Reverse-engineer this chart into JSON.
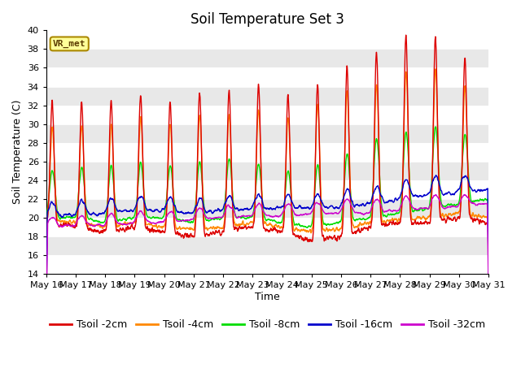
{
  "title": "Soil Temperature Set 3",
  "xlabel": "Time",
  "ylabel": "Soil Temperature (C)",
  "ylim": [
    14,
    40
  ],
  "yticks": [
    14,
    16,
    18,
    20,
    22,
    24,
    26,
    28,
    30,
    32,
    34,
    36,
    38,
    40
  ],
  "colors": {
    "Tsoil -2cm": "#dd0000",
    "Tsoil -4cm": "#ff8800",
    "Tsoil -8cm": "#00dd00",
    "Tsoil -16cm": "#0000cc",
    "Tsoil -32cm": "#cc00cc"
  },
  "background_fig": "#ffffff",
  "band_colors": [
    "#ffffff",
    "#e8e8e8"
  ],
  "vr_met_box_color": "#ffff99",
  "vr_met_border_color": "#aa8800",
  "title_fontsize": 12,
  "axis_label_fontsize": 9,
  "tick_fontsize": 8,
  "legend_fontsize": 9,
  "n_days": 15,
  "samples_per_day": 144
}
